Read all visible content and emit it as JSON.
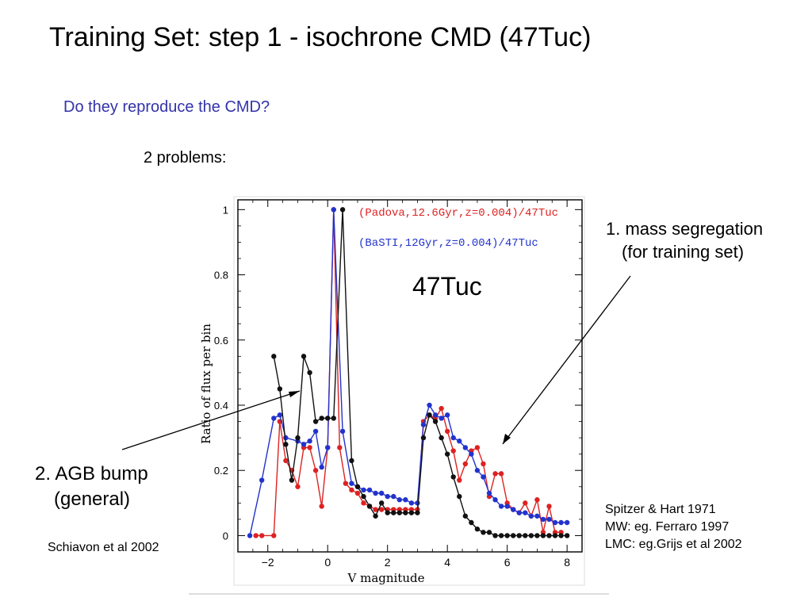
{
  "slide": {
    "title": "Training Set:  step 1 - isochrone CMD (47Tuc)",
    "subtitle": "Do they reproduce the CMD?",
    "problems": "2 problems:",
    "annotation_1": [
      "1. mass segregation",
      "(for training set)"
    ],
    "annotation_2": [
      "2. AGB bump",
      "(general)"
    ],
    "citation_left": "Schiavon et al 2002",
    "citation_right": [
      "Spitzer & Hart 1971",
      "MW: eg. Ferraro 1997",
      "LMC: eg.Grijs et al 2002"
    ]
  },
  "chart_data": {
    "type": "line",
    "xlabel": "V magnitude",
    "ylabel": "Ratio of flux per bin",
    "annotation": "47Tuc",
    "xlim": [
      -3,
      8.5
    ],
    "ylim": [
      -0.05,
      1.03
    ],
    "xticks": [
      -2,
      0,
      2,
      4,
      6,
      8
    ],
    "yticks": [
      0,
      0.2,
      0.4,
      0.6,
      0.8,
      1
    ],
    "legend_placement": "top-right",
    "series": [
      {
        "name": "(Padova,12.6Gyr,z=0.004)/47Tuc",
        "color": "#dd2222",
        "x": [
          -2.4,
          -2.2,
          -1.8,
          -1.6,
          -1.4,
          -1.2,
          -1.0,
          -0.8,
          -0.6,
          -0.4,
          -0.2,
          0.0,
          0.2,
          0.4,
          0.6,
          0.8,
          1.0,
          1.2,
          1.4,
          1.6,
          1.8,
          2.0,
          2.2,
          2.4,
          2.6,
          2.8,
          3.0,
          3.2,
          3.4,
          3.6,
          3.8,
          4.0,
          4.2,
          4.4,
          4.6,
          4.8,
          5.0,
          5.2,
          5.4,
          5.6,
          5.8,
          6.0,
          6.2,
          6.4,
          6.6,
          6.8,
          7.0,
          7.2,
          7.4,
          7.6,
          7.8
        ],
        "values": [
          0.0,
          0.0,
          0.0,
          0.35,
          0.23,
          0.2,
          0.15,
          0.27,
          0.27,
          0.2,
          0.09,
          0.27,
          1.0,
          0.27,
          0.16,
          0.14,
          0.13,
          0.1,
          0.09,
          0.08,
          0.08,
          0.08,
          0.08,
          0.08,
          0.08,
          0.08,
          0.08,
          0.35,
          0.37,
          0.36,
          0.39,
          0.32,
          0.26,
          0.17,
          0.22,
          0.26,
          0.27,
          0.22,
          0.12,
          0.19,
          0.19,
          0.1,
          0.08,
          0.07,
          0.1,
          0.06,
          0.11,
          0.01,
          0.09,
          0.01,
          0.01
        ]
      },
      {
        "name": "(BaSTI,12Gyr,z=0.004)/47Tuc",
        "color": "#2233cc",
        "x": [
          -2.6,
          -2.2,
          -1.8,
          -1.6,
          -1.4,
          -1.0,
          -0.8,
          -0.6,
          -0.4,
          -0.2,
          0.0,
          0.2,
          0.5,
          0.8,
          1.0,
          1.2,
          1.4,
          1.6,
          1.8,
          2.0,
          2.2,
          2.4,
          2.6,
          2.8,
          3.0,
          3.2,
          3.4,
          3.6,
          3.8,
          4.0,
          4.2,
          4.4,
          4.6,
          4.8,
          5.0,
          5.2,
          5.4,
          5.6,
          5.8,
          6.0,
          6.2,
          6.4,
          6.6,
          6.8,
          7.0,
          7.2,
          7.4,
          7.6,
          7.8,
          8.0
        ],
        "values": [
          0.0,
          0.17,
          0.36,
          0.37,
          0.3,
          0.29,
          0.28,
          0.29,
          0.32,
          0.21,
          0.27,
          1.0,
          0.32,
          0.16,
          0.15,
          0.14,
          0.14,
          0.13,
          0.13,
          0.12,
          0.12,
          0.11,
          0.11,
          0.1,
          0.1,
          0.34,
          0.4,
          0.37,
          0.36,
          0.37,
          0.3,
          0.29,
          0.27,
          0.25,
          0.2,
          0.18,
          0.13,
          0.11,
          0.09,
          0.09,
          0.08,
          0.07,
          0.07,
          0.06,
          0.06,
          0.05,
          0.05,
          0.04,
          0.04,
          0.04
        ]
      },
      {
        "name": "",
        "color": "#111111",
        "x": [
          -1.8,
          -1.6,
          -1.4,
          -1.2,
          -1.0,
          -0.8,
          -0.6,
          -0.4,
          -0.2,
          0.0,
          0.2,
          0.5,
          0.8,
          1.0,
          1.2,
          1.4,
          1.6,
          1.8,
          2.0,
          2.2,
          2.4,
          2.6,
          2.8,
          3.0,
          3.2,
          3.4,
          3.6,
          3.8,
          4.0,
          4.2,
          4.4,
          4.6,
          4.8,
          5.0,
          5.2,
          5.4,
          5.6,
          5.8,
          6.0,
          6.2,
          6.4,
          6.6,
          6.8,
          7.0,
          7.2,
          7.4,
          7.6,
          7.8,
          8.0
        ],
        "values": [
          0.55,
          0.45,
          0.28,
          0.17,
          0.3,
          0.55,
          0.5,
          0.35,
          0.36,
          0.36,
          0.36,
          1.0,
          0.23,
          0.15,
          0.12,
          0.09,
          0.06,
          0.1,
          0.07,
          0.07,
          0.07,
          0.07,
          0.07,
          0.07,
          0.3,
          0.37,
          0.35,
          0.3,
          0.25,
          0.18,
          0.12,
          0.06,
          0.04,
          0.02,
          0.01,
          0.01,
          0.0,
          0.0,
          0.0,
          0.0,
          0.0,
          0.0,
          0.0,
          0.0,
          0.0,
          0.0,
          0.0,
          0.0,
          0.0
        ]
      }
    ]
  }
}
